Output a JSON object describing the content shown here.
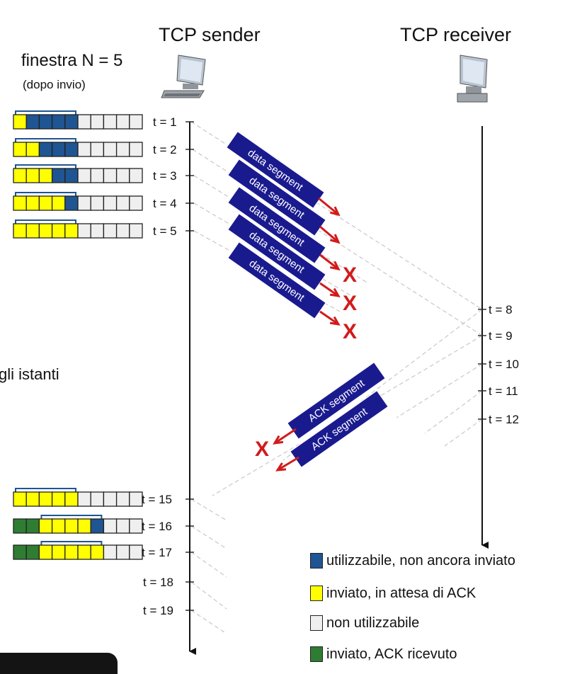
{
  "sender_label": "TCP sender",
  "receiver_label": "TCP receiver",
  "window_title": "finestra N = 5",
  "window_subtitle": "(dopo invio)",
  "cut_text": "gli istanti",
  "cut_text_bottom": "",
  "colors": {
    "blue": "#1f5592",
    "yellow": "#ffff00",
    "empty": "#efefef",
    "green": "#2e7d32",
    "segment_bg": "#1a1a8f",
    "arrow_red": "#d21b1b",
    "dashed_line": "#c8c8c8"
  },
  "sender_rows": [
    {
      "label": "t = 1",
      "cells": [
        "Y",
        "B",
        "B",
        "B",
        "B",
        "E",
        "E",
        "E",
        "E",
        "E"
      ]
    },
    {
      "label": "t = 2",
      "cells": [
        "Y",
        "Y",
        "B",
        "B",
        "B",
        "E",
        "E",
        "E",
        "E",
        "E"
      ]
    },
    {
      "label": "t = 3",
      "cells": [
        "Y",
        "Y",
        "Y",
        "B",
        "B",
        "E",
        "E",
        "E",
        "E",
        "E"
      ]
    },
    {
      "label": "t = 4",
      "cells": [
        "Y",
        "Y",
        "Y",
        "Y",
        "B",
        "E",
        "E",
        "E",
        "E",
        "E"
      ]
    },
    {
      "label": "t = 5",
      "cells": [
        "Y",
        "Y",
        "Y",
        "Y",
        "Y",
        "E",
        "E",
        "E",
        "E",
        "E"
      ]
    },
    {
      "label": "t = 15",
      "cells": [
        "Y",
        "Y",
        "Y",
        "Y",
        "Y",
        "E",
        "E",
        "E",
        "E",
        "E"
      ]
    },
    {
      "label": "t = 16",
      "cells": [
        "G",
        "G",
        "Y",
        "Y",
        "Y",
        "Y",
        "B",
        "E",
        "E",
        "E"
      ]
    },
    {
      "label": "t = 17",
      "cells": [
        "G",
        "G",
        "Y",
        "Y",
        "Y",
        "Y",
        "Y",
        "E",
        "E",
        "E"
      ]
    }
  ],
  "sender_extra_ticks": [
    "t = 18",
    "t = 19"
  ],
  "receiver_ticks": [
    "t = 8",
    "t = 9",
    "t = 10",
    "t = 11",
    "t = 12"
  ],
  "data_segments": [
    "data segment",
    "data segment",
    "data segment",
    "data segment",
    "data segment"
  ],
  "ack_segments": [
    "ACK segment",
    "ACK segment"
  ],
  "loss_mark": "X",
  "legend": [
    {
      "color": "blue",
      "label": "utilizzabile, non ancora inviato"
    },
    {
      "color": "yellow",
      "label": "inviato, in attesa di ACK"
    },
    {
      "color": "empty",
      "label": "non utilizzabile"
    },
    {
      "color": "green",
      "label": "inviato, ACK ricevuto"
    }
  ]
}
